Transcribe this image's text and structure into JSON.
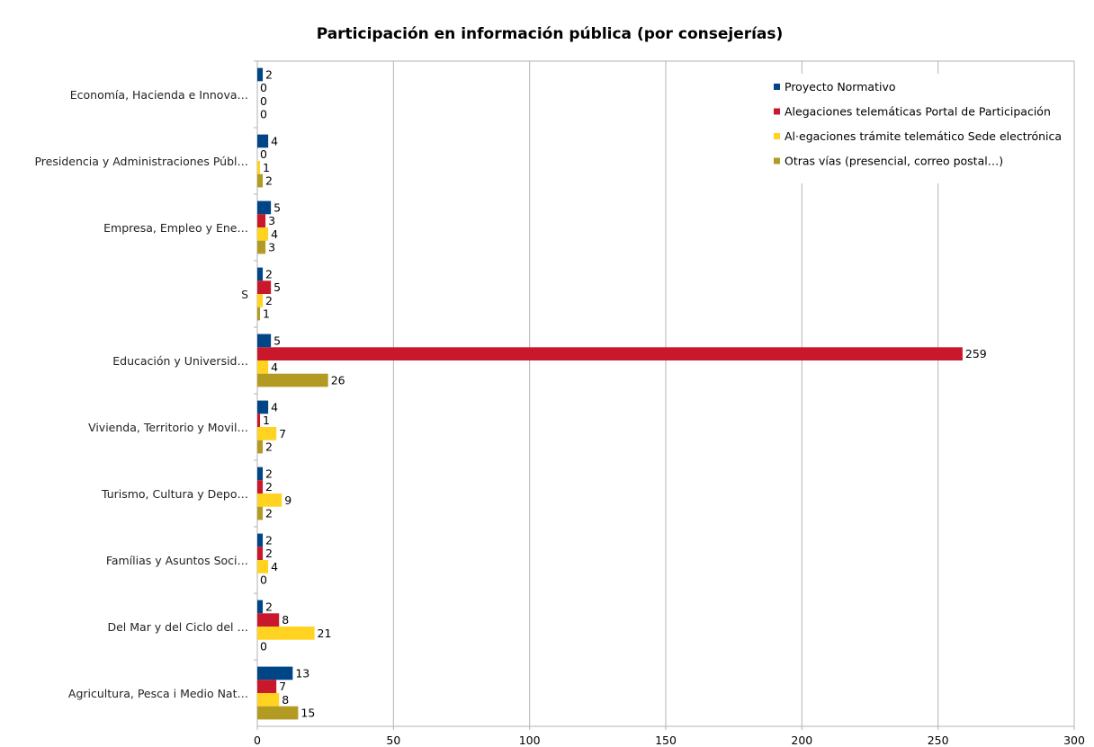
{
  "chart_data": {
    "type": "bar",
    "orientation": "horizontal",
    "title": "Participación en información pública (por consejerías)",
    "categories": [
      "Economía, Hacienda e Innova…",
      "Presidencia y Administraciones Públ…",
      "Empresa, Empleo y Ene…",
      "S",
      "Educación y Universid…",
      "Vivienda, Territorio y Movil…",
      "Turismo, Cultura y Depo…",
      "Famílias y Asuntos Soci…",
      "Del Mar y del Ciclo del …",
      "Agricultura, Pesca i Medio Nat…"
    ],
    "series": [
      {
        "name": "Proyecto Normativo",
        "color": "#004586",
        "values": [
          2,
          4,
          5,
          2,
          5,
          4,
          2,
          2,
          2,
          13
        ]
      },
      {
        "name": "Alegaciones  telemáticas  Portal de Participación",
        "color": "#c9182c",
        "values": [
          0,
          0,
          3,
          5,
          259,
          1,
          2,
          2,
          8,
          7
        ]
      },
      {
        "name": "Al·egaciones  trámite telemático Sede electrónica",
        "color": "#ffd320",
        "values": [
          0,
          1,
          4,
          2,
          4,
          7,
          9,
          4,
          21,
          8
        ]
      },
      {
        "name": "Otras vías  (presencial, correo postal…)",
        "color": "#b39b23",
        "values": [
          0,
          2,
          3,
          1,
          26,
          2,
          2,
          0,
          0,
          15
        ]
      }
    ],
    "xlim": [
      0,
      300
    ],
    "xticks": [
      "0",
      "50",
      "100",
      "150",
      "200",
      "250",
      "300"
    ],
    "grid": true,
    "legend": "top-right"
  }
}
